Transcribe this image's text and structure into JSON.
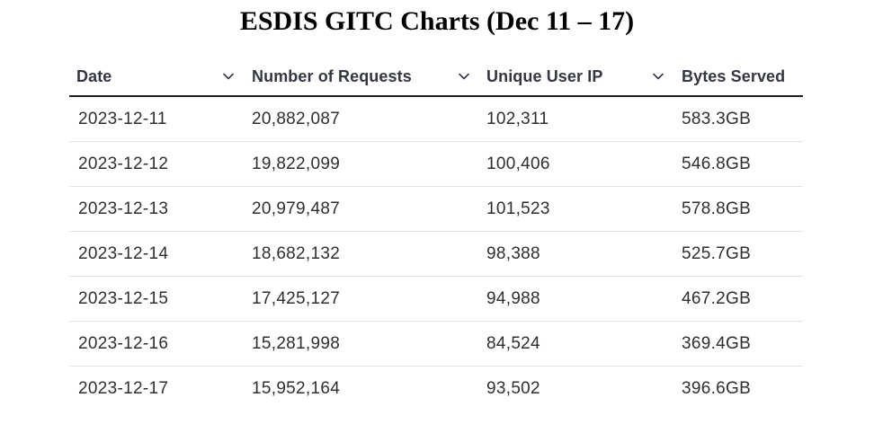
{
  "title": "ESDIS GITC Charts (Dec 11 – 17)",
  "icons": {
    "sort": "chevron-down-icon"
  },
  "colors": {
    "header_text": "#343741",
    "header_rule": "#1f1f1f",
    "row_divider": "#e3e3e3",
    "cell_text": "#2f2f2f"
  },
  "table": {
    "columns": [
      {
        "label": "Date"
      },
      {
        "label": "Number of Requests"
      },
      {
        "label": "Unique User IP"
      },
      {
        "label": "Bytes Served"
      }
    ],
    "rows": [
      {
        "date": "2023-12-11",
        "requests": "20,882,087",
        "unique_ip": "102,311",
        "bytes": "583.3GB"
      },
      {
        "date": "2023-12-12",
        "requests": "19,822,099",
        "unique_ip": "100,406",
        "bytes": "546.8GB"
      },
      {
        "date": "2023-12-13",
        "requests": "20,979,487",
        "unique_ip": "101,523",
        "bytes": "578.8GB"
      },
      {
        "date": "2023-12-14",
        "requests": "18,682,132",
        "unique_ip": "98,388",
        "bytes": "525.7GB"
      },
      {
        "date": "2023-12-15",
        "requests": "17,425,127",
        "unique_ip": "94,988",
        "bytes": "467.2GB"
      },
      {
        "date": "2023-12-16",
        "requests": "15,281,998",
        "unique_ip": "84,524",
        "bytes": "369.4GB"
      },
      {
        "date": "2023-12-17",
        "requests": "15,952,164",
        "unique_ip": "93,502",
        "bytes": "396.6GB"
      }
    ]
  }
}
